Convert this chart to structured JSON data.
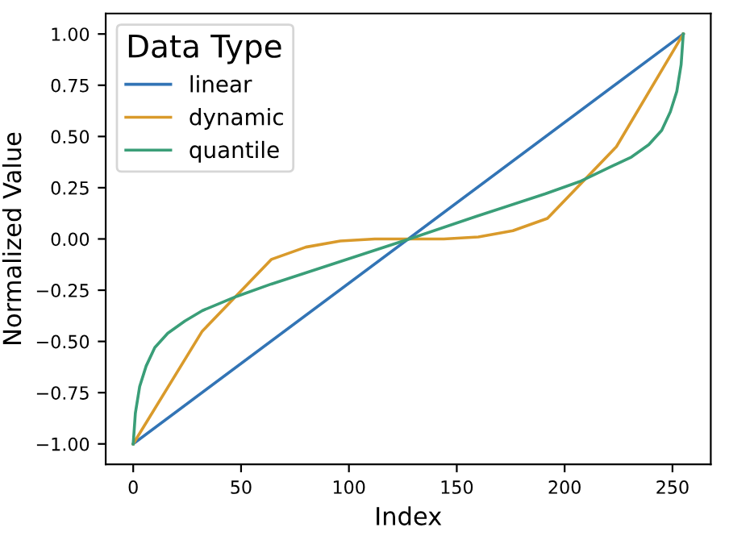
{
  "chart_data": {
    "type": "line",
    "xlabel": "Index",
    "ylabel": "Normalized Value",
    "legend_title": "Data Type",
    "legend": "top left",
    "grid": false,
    "xlim": [
      -12.75,
      267.75
    ],
    "xticks": [
      0,
      50,
      100,
      150,
      200,
      250
    ],
    "ylim": [
      -1.1,
      1.1
    ],
    "yticks": [
      {
        "value": -1,
        "label": "−1.00"
      },
      {
        "value": -0.75,
        "label": "−0.75"
      },
      {
        "value": -0.5,
        "label": "−0.50"
      },
      {
        "value": -0.25,
        "label": "−0.25"
      },
      {
        "value": 0,
        "label": "0.00"
      },
      {
        "value": 0.25,
        "label": "0.25"
      },
      {
        "value": 0.5,
        "label": "0.50"
      },
      {
        "value": 0.75,
        "label": "0.75"
      },
      {
        "value": 1,
        "label": "1.00"
      }
    ],
    "series": [
      {
        "name": "linear",
        "color": "#3274b5",
        "x": [
          0,
          255
        ],
        "values": [
          -1,
          1
        ]
      },
      {
        "name": "dynamic",
        "color": "#d99a2b",
        "x": [
          0,
          32,
          64,
          80,
          96,
          112,
          128,
          144,
          160,
          176,
          192,
          224,
          255
        ],
        "values": [
          -1,
          -0.45,
          -0.1,
          -0.04,
          -0.01,
          0,
          0,
          0,
          0.01,
          0.04,
          0.1,
          0.45,
          1
        ]
      },
      {
        "name": "quantile",
        "color": "#3a9e78",
        "x": [
          0,
          1,
          3,
          6,
          10,
          16,
          24,
          32,
          48,
          64,
          96,
          128,
          159,
          191,
          207,
          221,
          231,
          239,
          245,
          249,
          252,
          254,
          255
        ],
        "values": [
          -1,
          -0.85,
          -0.72,
          -0.62,
          -0.53,
          -0.46,
          -0.4,
          -0.35,
          -0.28,
          -0.22,
          -0.11,
          0,
          0.11,
          0.22,
          0.28,
          0.35,
          0.4,
          0.46,
          0.53,
          0.62,
          0.72,
          0.85,
          1
        ]
      }
    ]
  }
}
